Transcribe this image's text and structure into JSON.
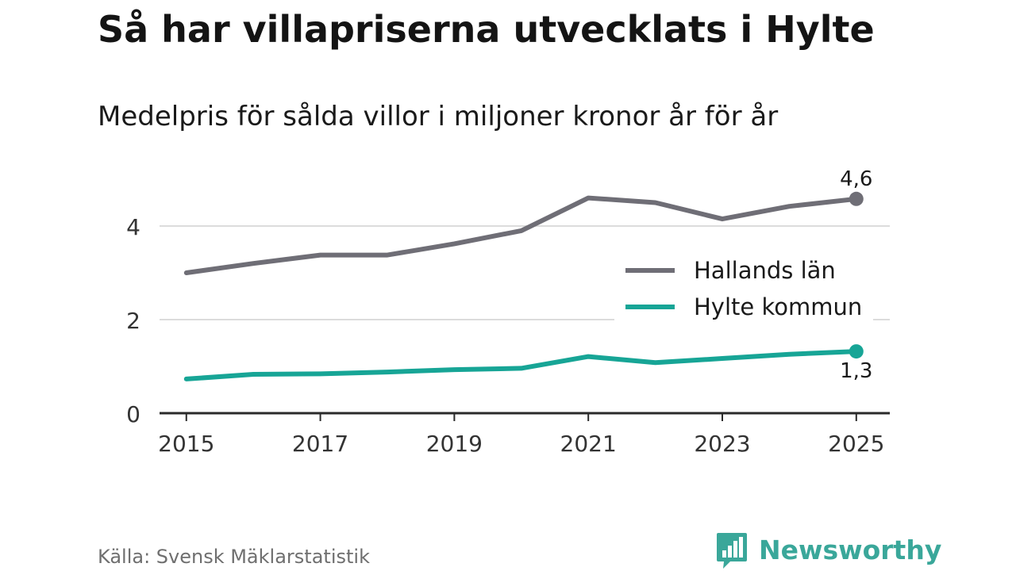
{
  "title": "Så har villapriserna utvecklats i Hylte",
  "subtitle": "Medelpris för sålda villor i miljoner kronor år för år",
  "source": "Källa: Svensk Mäklarstatistik",
  "brand": {
    "name": "Newsworthy",
    "icon": "bar-chart-speech-bubble-icon",
    "color": "#3aa79a"
  },
  "chart_data": {
    "type": "line",
    "title": "Så har villapriserna utvecklats i Hylte",
    "subtitle": "Medelpris för sålda villor i miljoner kronor år för år",
    "xlabel": "",
    "ylabel": "",
    "x": [
      2015,
      2016,
      2017,
      2018,
      2019,
      2020,
      2021,
      2022,
      2023,
      2024,
      2025
    ],
    "xticks": [
      "2015",
      "2017",
      "2019",
      "2021",
      "2023",
      "2025"
    ],
    "yticks": [
      "0",
      "2",
      "4"
    ],
    "ylim": [
      0,
      5
    ],
    "xlim": [
      2014.6,
      2025.5
    ],
    "grid": true,
    "legend": "right",
    "series": [
      {
        "name": "Hallands län",
        "color": "#6f6e76",
        "values": [
          3.0,
          3.2,
          3.38,
          3.38,
          3.62,
          3.9,
          4.6,
          4.5,
          4.15,
          4.42,
          4.58
        ],
        "end_label": "4,6",
        "end_label_position": "above"
      },
      {
        "name": "Hylte kommun",
        "color": "#17a596",
        "values": [
          0.73,
          0.83,
          0.84,
          0.88,
          0.93,
          0.96,
          1.21,
          1.08,
          1.17,
          1.26,
          1.32
        ],
        "end_label": "1,3",
        "end_label_position": "below"
      }
    ]
  }
}
